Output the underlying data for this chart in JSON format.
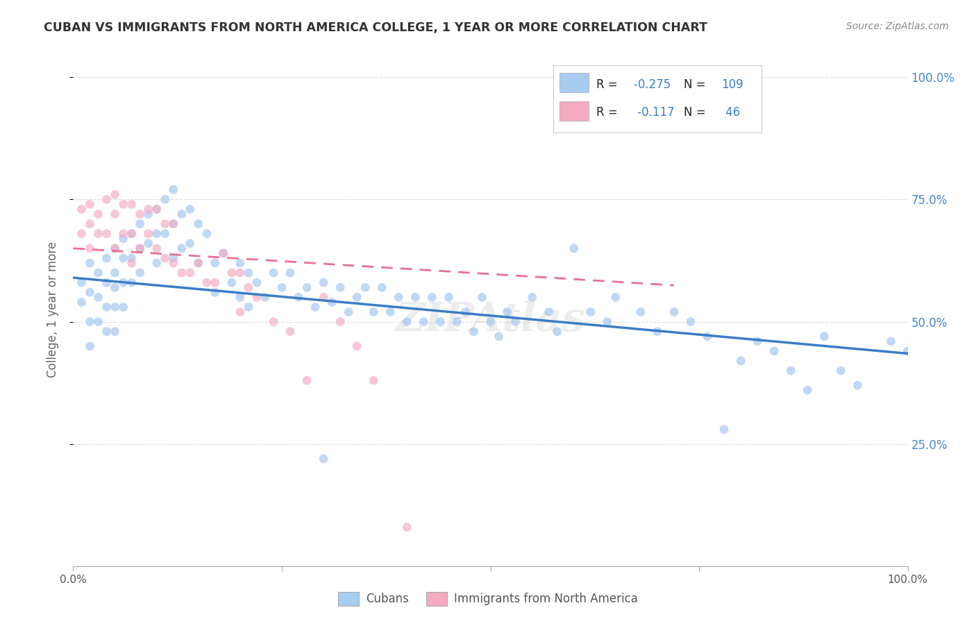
{
  "title": "CUBAN VS IMMIGRANTS FROM NORTH AMERICA COLLEGE, 1 YEAR OR MORE CORRELATION CHART",
  "source": "Source: ZipAtlas.com",
  "ylabel": "College, 1 year or more",
  "xlim": [
    0.0,
    1.0
  ],
  "ylim": [
    0.0,
    1.05
  ],
  "ytick_labels": [
    "25.0%",
    "50.0%",
    "75.0%",
    "100.0%"
  ],
  "ytick_positions": [
    0.25,
    0.5,
    0.75,
    1.0
  ],
  "xtick_positions": [
    0.0,
    0.25,
    0.5,
    0.75,
    1.0
  ],
  "xtick_labels": [
    "0.0%",
    "",
    "",
    "",
    "100.0%"
  ],
  "blue_color": "#A0C4F0",
  "pink_color": "#F4AABF",
  "blue_line_color": "#3B7DC8",
  "pink_line_color": "#E87090",
  "legend_blue_color": "#A8CCF0",
  "legend_pink_color": "#F4AABF",
  "R_blue": -0.275,
  "N_blue": 109,
  "R_pink": -0.117,
  "N_pink": 46,
  "blue_intercept": 0.59,
  "blue_slope": -0.155,
  "pink_intercept": 0.65,
  "pink_slope": -0.105,
  "pink_line_xmax": 0.72,
  "blue_scatter_x": [
    0.01,
    0.01,
    0.02,
    0.02,
    0.02,
    0.02,
    0.03,
    0.03,
    0.03,
    0.04,
    0.04,
    0.04,
    0.04,
    0.05,
    0.05,
    0.05,
    0.05,
    0.05,
    0.06,
    0.06,
    0.06,
    0.06,
    0.07,
    0.07,
    0.07,
    0.08,
    0.08,
    0.08,
    0.09,
    0.09,
    0.1,
    0.1,
    0.1,
    0.11,
    0.11,
    0.12,
    0.12,
    0.12,
    0.13,
    0.13,
    0.14,
    0.14,
    0.15,
    0.15,
    0.16,
    0.17,
    0.17,
    0.18,
    0.19,
    0.2,
    0.2,
    0.21,
    0.21,
    0.22,
    0.23,
    0.24,
    0.25,
    0.26,
    0.27,
    0.28,
    0.29,
    0.3,
    0.31,
    0.32,
    0.33,
    0.34,
    0.35,
    0.36,
    0.37,
    0.38,
    0.39,
    0.4,
    0.41,
    0.42,
    0.43,
    0.44,
    0.45,
    0.46,
    0.47,
    0.48,
    0.49,
    0.5,
    0.51,
    0.52,
    0.53,
    0.55,
    0.57,
    0.58,
    0.6,
    0.62,
    0.64,
    0.65,
    0.68,
    0.7,
    0.72,
    0.74,
    0.76,
    0.78,
    0.8,
    0.82,
    0.84,
    0.86,
    0.88,
    0.9,
    0.92,
    0.94,
    0.98,
    1.0,
    0.3
  ],
  "blue_scatter_y": [
    0.58,
    0.54,
    0.62,
    0.56,
    0.5,
    0.45,
    0.6,
    0.55,
    0.5,
    0.63,
    0.58,
    0.53,
    0.48,
    0.65,
    0.6,
    0.57,
    0.53,
    0.48,
    0.67,
    0.63,
    0.58,
    0.53,
    0.68,
    0.63,
    0.58,
    0.7,
    0.65,
    0.6,
    0.72,
    0.66,
    0.73,
    0.68,
    0.62,
    0.75,
    0.68,
    0.77,
    0.7,
    0.63,
    0.72,
    0.65,
    0.73,
    0.66,
    0.7,
    0.62,
    0.68,
    0.62,
    0.56,
    0.64,
    0.58,
    0.62,
    0.55,
    0.6,
    0.53,
    0.58,
    0.55,
    0.6,
    0.57,
    0.6,
    0.55,
    0.57,
    0.53,
    0.58,
    0.54,
    0.57,
    0.52,
    0.55,
    0.57,
    0.52,
    0.57,
    0.52,
    0.55,
    0.5,
    0.55,
    0.5,
    0.55,
    0.5,
    0.55,
    0.5,
    0.52,
    0.48,
    0.55,
    0.5,
    0.47,
    0.52,
    0.5,
    0.55,
    0.52,
    0.48,
    0.65,
    0.52,
    0.5,
    0.55,
    0.52,
    0.48,
    0.52,
    0.5,
    0.47,
    0.28,
    0.42,
    0.46,
    0.44,
    0.4,
    0.36,
    0.47,
    0.4,
    0.37,
    0.46,
    0.44,
    0.22
  ],
  "pink_scatter_x": [
    0.01,
    0.01,
    0.02,
    0.02,
    0.02,
    0.03,
    0.03,
    0.04,
    0.04,
    0.05,
    0.05,
    0.05,
    0.06,
    0.06,
    0.07,
    0.07,
    0.07,
    0.08,
    0.08,
    0.09,
    0.09,
    0.1,
    0.1,
    0.11,
    0.11,
    0.12,
    0.12,
    0.13,
    0.14,
    0.15,
    0.16,
    0.17,
    0.18,
    0.19,
    0.2,
    0.2,
    0.21,
    0.22,
    0.24,
    0.26,
    0.28,
    0.3,
    0.32,
    0.34,
    0.36,
    0.4
  ],
  "pink_scatter_y": [
    0.73,
    0.68,
    0.74,
    0.7,
    0.65,
    0.72,
    0.68,
    0.75,
    0.68,
    0.76,
    0.72,
    0.65,
    0.74,
    0.68,
    0.74,
    0.68,
    0.62,
    0.72,
    0.65,
    0.73,
    0.68,
    0.73,
    0.65,
    0.7,
    0.63,
    0.7,
    0.62,
    0.6,
    0.6,
    0.62,
    0.58,
    0.58,
    0.64,
    0.6,
    0.6,
    0.52,
    0.57,
    0.55,
    0.5,
    0.48,
    0.38,
    0.55,
    0.5,
    0.45,
    0.38,
    0.08
  ],
  "watermark": "ZIPAtlas",
  "marker_size": 85,
  "alpha": 0.65,
  "grid_color": "#DDDDDD",
  "background_color": "#FFFFFF",
  "title_color": "#333333",
  "axis_label_color": "#666666",
  "right_tick_color": "#4488CC",
  "source_color": "#888888",
  "tick_text_color": "#555555"
}
